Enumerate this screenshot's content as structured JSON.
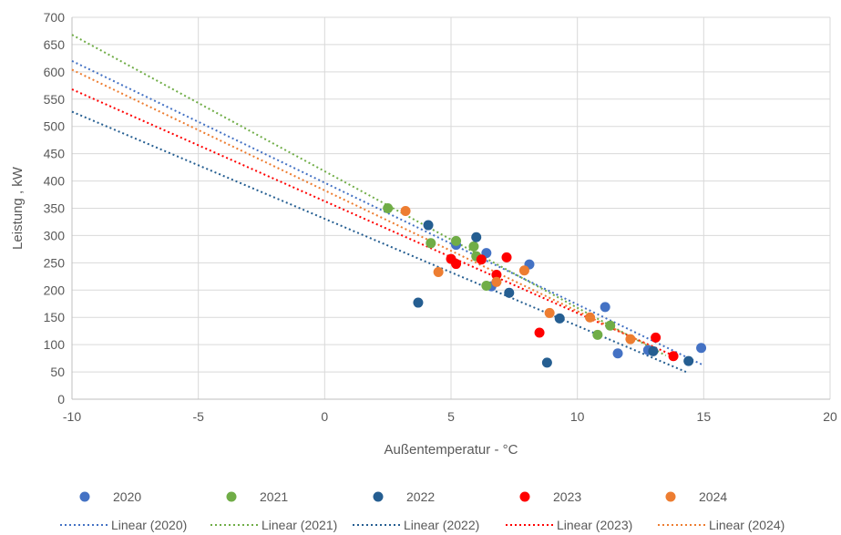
{
  "chart_data": {
    "type": "scatter",
    "xlabel": "Außentemperatur - °C",
    "ylabel": "Leistung , kW",
    "xlim": [
      -10,
      20
    ],
    "ylim": [
      0,
      700
    ],
    "xticks": [
      -10,
      -5,
      0,
      5,
      10,
      15,
      20
    ],
    "yticks": [
      0,
      50,
      100,
      150,
      200,
      250,
      300,
      350,
      400,
      450,
      500,
      550,
      600,
      650,
      700
    ],
    "grid": true,
    "legend_position": "bottom",
    "series": [
      {
        "name": "2020",
        "color": "#4472C4",
        "points": [
          [
            5.2,
            283
          ],
          [
            6.4,
            268
          ],
          [
            6.6,
            207
          ],
          [
            8.1,
            247
          ],
          [
            11.1,
            169
          ],
          [
            11.6,
            84
          ],
          [
            12.8,
            90
          ],
          [
            14.9,
            94
          ]
        ],
        "trendline": {
          "name": "Linear (2020)",
          "x": [
            -10,
            15
          ],
          "y": [
            620,
            62
          ]
        }
      },
      {
        "name": "2021",
        "color": "#70AD47",
        "points": [
          [
            2.5,
            350
          ],
          [
            4.2,
            286
          ],
          [
            5.2,
            290
          ],
          [
            5.9,
            280
          ],
          [
            6.0,
            262
          ],
          [
            6.4,
            208
          ],
          [
            10.8,
            118
          ],
          [
            11.3,
            135
          ]
        ],
        "trendline": {
          "name": "Linear (2021)",
          "x": [
            -10,
            13.5
          ],
          "y": [
            668,
            80
          ]
        }
      },
      {
        "name": "2022",
        "color": "#255E91",
        "points": [
          [
            3.7,
            177
          ],
          [
            4.1,
            319
          ],
          [
            6.0,
            297
          ],
          [
            7.3,
            195
          ],
          [
            8.8,
            67
          ],
          [
            9.3,
            148
          ],
          [
            13.0,
            88
          ],
          [
            14.4,
            70
          ]
        ],
        "trendline": {
          "name": "Linear (2022)",
          "x": [
            -10,
            14.3
          ],
          "y": [
            527,
            50
          ]
        }
      },
      {
        "name": "2023",
        "color": "#FF0000",
        "points": [
          [
            5.0,
            257
          ],
          [
            5.2,
            248
          ],
          [
            6.2,
            256
          ],
          [
            6.8,
            228
          ],
          [
            7.2,
            260
          ],
          [
            8.5,
            122
          ],
          [
            13.1,
            113
          ],
          [
            13.8,
            79
          ]
        ],
        "trendline": {
          "name": "Linear (2023)",
          "x": [
            -10,
            13.8
          ],
          "y": [
            568,
            80
          ]
        }
      },
      {
        "name": "2024",
        "color": "#ED7D31",
        "points": [
          [
            3.2,
            345
          ],
          [
            4.5,
            233
          ],
          [
            6.8,
            215
          ],
          [
            7.9,
            236
          ],
          [
            8.9,
            158
          ],
          [
            10.5,
            150
          ],
          [
            12.1,
            110
          ]
        ],
        "trendline": {
          "name": "Linear (2024)",
          "x": [
            -10,
            13.0
          ],
          "y": [
            604,
            95
          ]
        }
      }
    ]
  }
}
